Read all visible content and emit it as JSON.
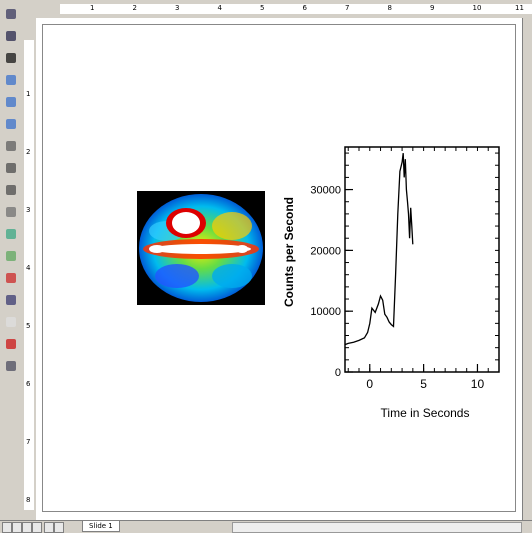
{
  "tabs": {
    "slide_label": "Slide 1"
  },
  "ruler": {
    "h_numbers": [
      "1",
      "2",
      "3",
      "4",
      "5",
      "6",
      "7",
      "8",
      "9",
      "10",
      "11"
    ],
    "v_numbers": [
      "1",
      "2",
      "3",
      "4",
      "5",
      "6",
      "7",
      "8"
    ]
  },
  "tools": [
    "select-arrow-icon",
    "zoom-icon",
    "text-tool-icon",
    "rectangle-icon",
    "ellipse-icon",
    "polygon-icon",
    "freehand-icon",
    "line-icon",
    "curve-icon",
    "rotate-icon",
    "chart-icon",
    "layers-icon",
    "color-icon",
    "image-icon",
    "shapes-icon",
    "fill-icon",
    "frame-icon"
  ],
  "chart_data": {
    "type": "line",
    "xlabel": "Time in Seconds",
    "ylabel": "Counts per Second",
    "xlim": [
      -2.3,
      12
    ],
    "ylim": [
      0,
      37000
    ],
    "xticks": [
      "0",
      "5",
      "10"
    ],
    "xtick_values": [
      0,
      5,
      10
    ],
    "yticks": [
      "0",
      "10000",
      "20000",
      "30000"
    ],
    "ytick_values": [
      0,
      10000,
      20000,
      30000
    ],
    "x": [
      -2.3,
      -2.0,
      -1.5,
      -1.0,
      -0.5,
      -0.2,
      0.0,
      0.2,
      0.5,
      0.8,
      1.0,
      1.2,
      1.4,
      1.6,
      1.8,
      2.0,
      2.2,
      2.4,
      2.6,
      2.8,
      3.0,
      3.1,
      3.2,
      3.3,
      3.4,
      3.5,
      3.6,
      3.7,
      3.8,
      3.9,
      4.0
    ],
    "y": [
      4500,
      4700,
      4900,
      5200,
      5600,
      6500,
      8000,
      10500,
      9800,
      11200,
      12500,
      11800,
      9500,
      9000,
      8200,
      7800,
      7500,
      16000,
      26000,
      33000,
      34500,
      36000,
      32000,
      35000,
      30000,
      28000,
      26000,
      22000,
      27000,
      24000,
      21000
    ]
  }
}
